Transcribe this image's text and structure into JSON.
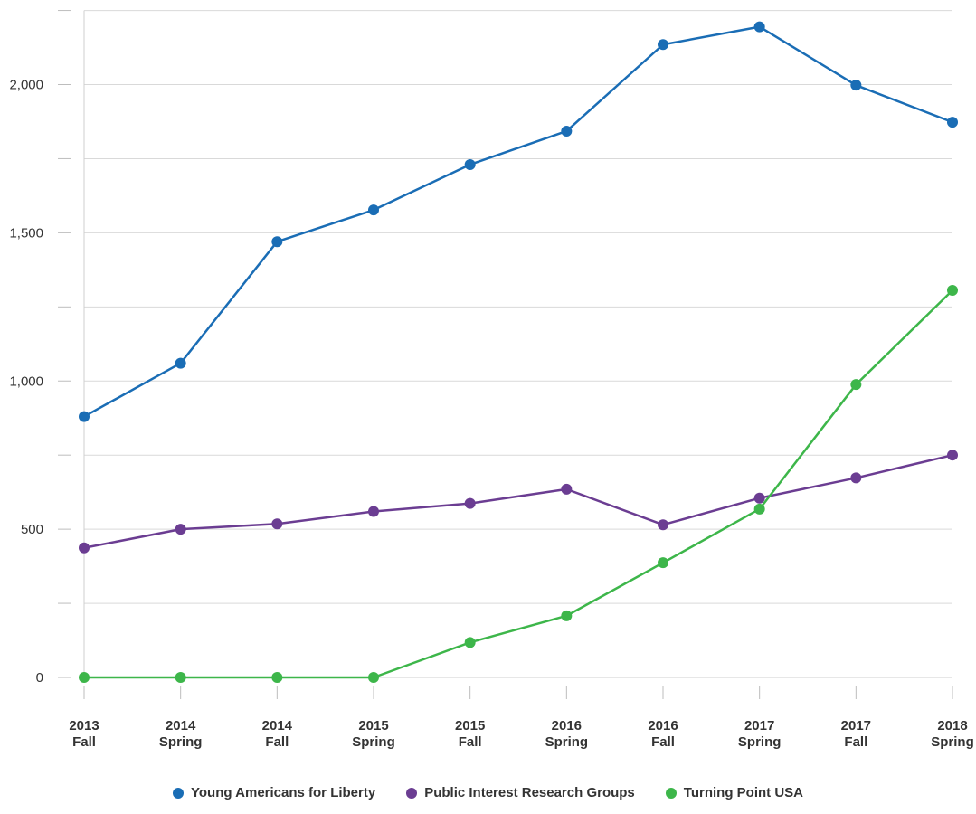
{
  "chart_data": {
    "type": "line",
    "title": "",
    "xlabel": "",
    "ylabel": "",
    "ylim": [
      0,
      2250
    ],
    "y_ticks": [
      0,
      500,
      1000,
      1500,
      2000
    ],
    "y_tick_labels": [
      "0",
      "500",
      "1,000",
      "1,500",
      "2,000"
    ],
    "grid": true,
    "legend_position": "bottom",
    "categories": [
      [
        "2013",
        "Fall"
      ],
      [
        "2014",
        "Spring"
      ],
      [
        "2014",
        "Fall"
      ],
      [
        "2015",
        "Spring"
      ],
      [
        "2015",
        "Fall"
      ],
      [
        "2016",
        "Spring"
      ],
      [
        "2016",
        "Fall"
      ],
      [
        "2017",
        "Spring"
      ],
      [
        "2017",
        "Fall"
      ],
      [
        "2018",
        "Spring"
      ]
    ],
    "series": [
      {
        "name": "Young Americans for Liberty",
        "color": "#1a6db5",
        "values": [
          880,
          1060,
          1470,
          1577,
          1730,
          1843,
          2135,
          2195,
          1998,
          1873
        ]
      },
      {
        "name": "Public Interest Research Groups",
        "color": "#6b3d92",
        "values": [
          437,
          500,
          518,
          560,
          587,
          635,
          515,
          605,
          673,
          750
        ]
      },
      {
        "name": "Turning Point USA",
        "color": "#3db64a",
        "values": [
          0,
          0,
          0,
          0,
          118,
          208,
          387,
          568,
          988,
          1306
        ]
      }
    ]
  }
}
